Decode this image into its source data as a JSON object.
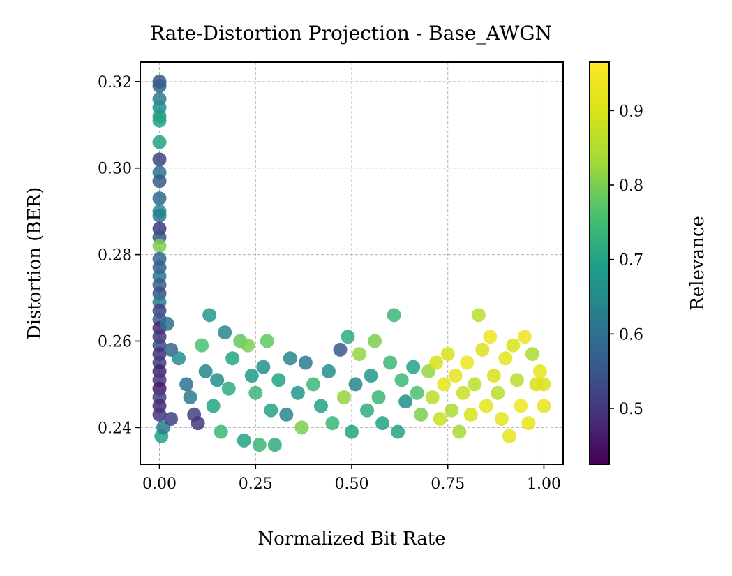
{
  "chart_data": {
    "type": "scatter",
    "title": "Rate-Distortion Projection - Base_AWGN",
    "xlabel": "Normalized Bit Rate",
    "ylabel": "Distortion (BER)",
    "colorbar_label": "Relevance",
    "xlim": [
      -0.05,
      1.05
    ],
    "ylim": [
      0.2315,
      0.3245
    ],
    "xticks": [
      0.0,
      0.25,
      0.5,
      0.75,
      1.0
    ],
    "xtick_labels": [
      "0.00",
      "0.25",
      "0.50",
      "0.75",
      "1.00"
    ],
    "yticks": [
      0.24,
      0.26,
      0.28,
      0.3,
      0.32
    ],
    "ytick_labels": [
      "0.24",
      "0.26",
      "0.28",
      "0.30",
      "0.32"
    ],
    "colorbar_range": [
      0.425,
      0.965
    ],
    "colorbar_ticks": [
      0.5,
      0.6,
      0.7,
      0.8,
      0.9
    ],
    "colorbar_tick_labels": [
      "0.5",
      "0.6",
      "0.7",
      "0.8",
      "0.9"
    ],
    "colormap": "viridis",
    "grid": true,
    "points": [
      [
        0.0,
        0.32,
        0.55
      ],
      [
        0.0,
        0.319,
        0.57
      ],
      [
        0.0,
        0.316,
        0.62
      ],
      [
        0.0,
        0.314,
        0.66
      ],
      [
        0.0,
        0.312,
        0.68
      ],
      [
        0.0,
        0.311,
        0.7
      ],
      [
        0.0,
        0.306,
        0.7
      ],
      [
        0.0,
        0.302,
        0.52
      ],
      [
        0.0,
        0.299,
        0.6
      ],
      [
        0.0,
        0.297,
        0.56
      ],
      [
        0.0,
        0.293,
        0.58
      ],
      [
        0.0,
        0.29,
        0.66
      ],
      [
        0.0,
        0.289,
        0.62
      ],
      [
        0.0,
        0.286,
        0.5
      ],
      [
        0.0,
        0.284,
        0.55
      ],
      [
        0.0,
        0.282,
        0.8
      ],
      [
        0.0,
        0.279,
        0.58
      ],
      [
        0.0,
        0.277,
        0.56
      ],
      [
        0.0,
        0.275,
        0.6
      ],
      [
        0.0,
        0.273,
        0.57
      ],
      [
        0.0,
        0.271,
        0.54
      ],
      [
        0.0,
        0.269,
        0.62
      ],
      [
        0.0,
        0.267,
        0.52
      ],
      [
        0.0,
        0.265,
        0.56
      ],
      [
        0.0,
        0.263,
        0.48
      ],
      [
        0.0,
        0.261,
        0.5
      ],
      [
        0.0,
        0.259,
        0.53
      ],
      [
        0.0,
        0.257,
        0.49
      ],
      [
        0.0,
        0.255,
        0.51
      ],
      [
        0.0,
        0.253,
        0.47
      ],
      [
        0.0,
        0.251,
        0.5
      ],
      [
        0.0,
        0.249,
        0.46
      ],
      [
        0.0,
        0.247,
        0.52
      ],
      [
        0.0,
        0.245,
        0.48
      ],
      [
        0.0,
        0.243,
        0.5
      ],
      [
        0.005,
        0.238,
        0.7
      ],
      [
        0.01,
        0.24,
        0.62
      ],
      [
        0.02,
        0.264,
        0.6
      ],
      [
        0.03,
        0.242,
        0.52
      ],
      [
        0.03,
        0.258,
        0.58
      ],
      [
        0.05,
        0.256,
        0.66
      ],
      [
        0.07,
        0.25,
        0.6
      ],
      [
        0.08,
        0.247,
        0.62
      ],
      [
        0.09,
        0.243,
        0.52
      ],
      [
        0.1,
        0.241,
        0.5
      ],
      [
        0.11,
        0.259,
        0.76
      ],
      [
        0.12,
        0.253,
        0.64
      ],
      [
        0.13,
        0.266,
        0.68
      ],
      [
        0.14,
        0.245,
        0.7
      ],
      [
        0.15,
        0.251,
        0.66
      ],
      [
        0.16,
        0.239,
        0.74
      ],
      [
        0.17,
        0.262,
        0.64
      ],
      [
        0.18,
        0.249,
        0.72
      ],
      [
        0.19,
        0.256,
        0.7
      ],
      [
        0.21,
        0.26,
        0.78
      ],
      [
        0.22,
        0.237,
        0.7
      ],
      [
        0.23,
        0.259,
        0.8
      ],
      [
        0.24,
        0.252,
        0.68
      ],
      [
        0.25,
        0.248,
        0.74
      ],
      [
        0.26,
        0.236,
        0.74
      ],
      [
        0.27,
        0.254,
        0.66
      ],
      [
        0.28,
        0.26,
        0.78
      ],
      [
        0.29,
        0.244,
        0.7
      ],
      [
        0.3,
        0.236,
        0.72
      ],
      [
        0.31,
        0.251,
        0.7
      ],
      [
        0.33,
        0.243,
        0.64
      ],
      [
        0.34,
        0.256,
        0.64
      ],
      [
        0.36,
        0.248,
        0.68
      ],
      [
        0.37,
        0.24,
        0.8
      ],
      [
        0.38,
        0.255,
        0.62
      ],
      [
        0.4,
        0.25,
        0.74
      ],
      [
        0.42,
        0.245,
        0.7
      ],
      [
        0.44,
        0.253,
        0.66
      ],
      [
        0.45,
        0.241,
        0.74
      ],
      [
        0.47,
        0.258,
        0.56
      ],
      [
        0.48,
        0.247,
        0.82
      ],
      [
        0.49,
        0.261,
        0.72
      ],
      [
        0.5,
        0.239,
        0.7
      ],
      [
        0.51,
        0.25,
        0.64
      ],
      [
        0.52,
        0.257,
        0.82
      ],
      [
        0.54,
        0.244,
        0.72
      ],
      [
        0.55,
        0.252,
        0.68
      ],
      [
        0.56,
        0.26,
        0.8
      ],
      [
        0.57,
        0.247,
        0.74
      ],
      [
        0.58,
        0.241,
        0.7
      ],
      [
        0.6,
        0.255,
        0.74
      ],
      [
        0.61,
        0.266,
        0.74
      ],
      [
        0.62,
        0.239,
        0.7
      ],
      [
        0.63,
        0.251,
        0.74
      ],
      [
        0.64,
        0.246,
        0.66
      ],
      [
        0.66,
        0.254,
        0.7
      ],
      [
        0.67,
        0.248,
        0.76
      ],
      [
        0.68,
        0.243,
        0.8
      ],
      [
        0.7,
        0.253,
        0.82
      ],
      [
        0.71,
        0.247,
        0.86
      ],
      [
        0.72,
        0.255,
        0.9
      ],
      [
        0.73,
        0.242,
        0.88
      ],
      [
        0.74,
        0.25,
        0.92
      ],
      [
        0.75,
        0.257,
        0.9
      ],
      [
        0.76,
        0.244,
        0.84
      ],
      [
        0.77,
        0.252,
        0.92
      ],
      [
        0.78,
        0.239,
        0.84
      ],
      [
        0.79,
        0.248,
        0.88
      ],
      [
        0.8,
        0.255,
        0.94
      ],
      [
        0.81,
        0.243,
        0.9
      ],
      [
        0.82,
        0.25,
        0.86
      ],
      [
        0.83,
        0.266,
        0.86
      ],
      [
        0.84,
        0.258,
        0.9
      ],
      [
        0.85,
        0.245,
        0.92
      ],
      [
        0.86,
        0.261,
        0.94
      ],
      [
        0.87,
        0.252,
        0.9
      ],
      [
        0.88,
        0.248,
        0.86
      ],
      [
        0.89,
        0.242,
        0.92
      ],
      [
        0.9,
        0.256,
        0.92
      ],
      [
        0.91,
        0.238,
        0.92
      ],
      [
        0.92,
        0.259,
        0.9
      ],
      [
        0.93,
        0.251,
        0.86
      ],
      [
        0.94,
        0.245,
        0.94
      ],
      [
        0.95,
        0.261,
        0.94
      ],
      [
        0.96,
        0.241,
        0.92
      ],
      [
        0.97,
        0.257,
        0.84
      ],
      [
        0.98,
        0.25,
        0.9
      ],
      [
        0.99,
        0.253,
        0.92
      ],
      [
        1.0,
        0.245,
        0.92
      ],
      [
        1.0,
        0.25,
        0.9
      ]
    ]
  }
}
